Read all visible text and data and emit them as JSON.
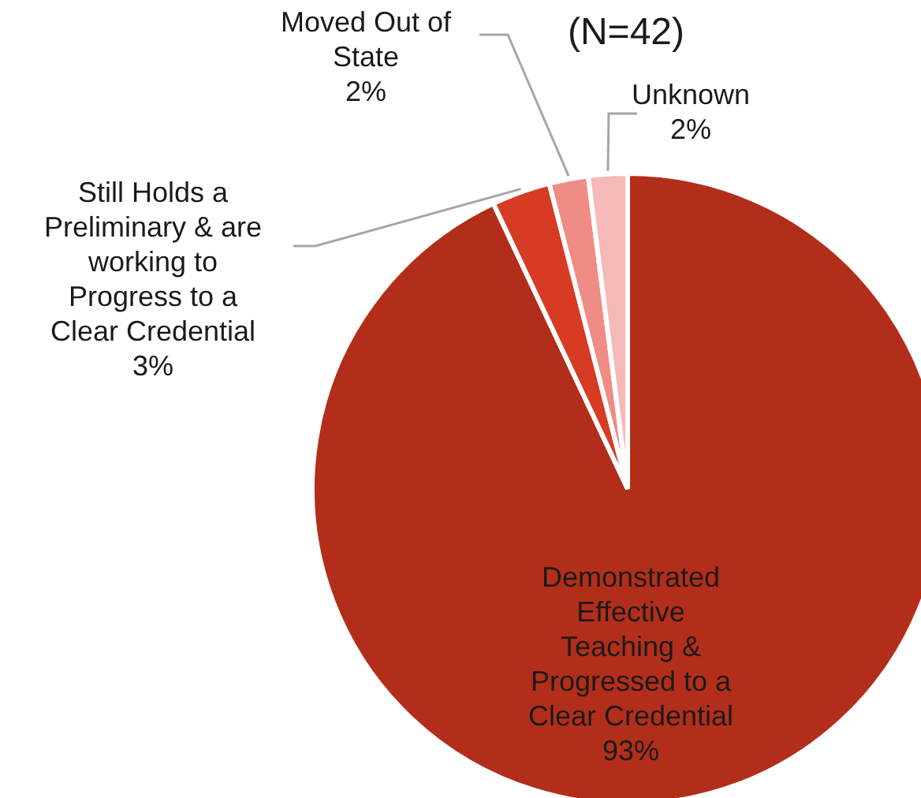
{
  "chart_data": {
    "type": "pie",
    "title": "(N=42)",
    "categories": [
      "Demonstrated Effective Teaching & Progressed to a Clear Credential",
      "Still Holds a Preliminary & are working to Progress to a Clear Credential",
      "Moved Out of State",
      "Unknown"
    ],
    "values": [
      93,
      3,
      2,
      2
    ],
    "value_labels": [
      "93%",
      "3%",
      "2%",
      "2%"
    ],
    "colors": [
      "#b32e1a",
      "#d73b24",
      "#f08c86",
      "#f5b9b7"
    ]
  }
}
